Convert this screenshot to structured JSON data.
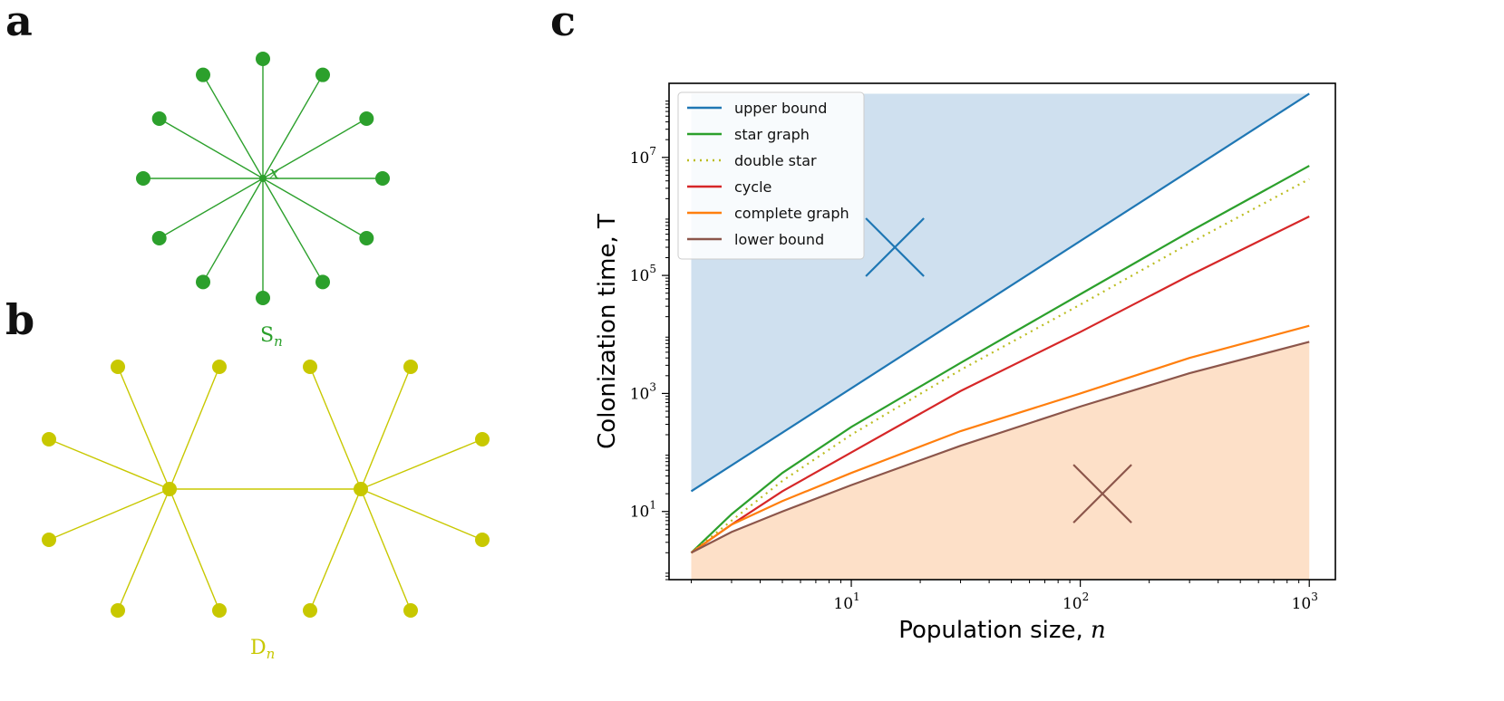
{
  "panels": {
    "a": "a",
    "b": "b",
    "c": "c"
  },
  "graph_a": {
    "label_main": "S",
    "label_sub": "n",
    "center_label": "x",
    "leaf_count": 12,
    "color": "#2ca02c"
  },
  "graph_b": {
    "label_main": "D",
    "label_sub": "n",
    "leaves_per_hub": 6,
    "color": "#c8c800"
  },
  "colors": {
    "upper": "#1f77b4",
    "star": "#2ca02c",
    "double": "#bcbd22",
    "cycle": "#d62728",
    "complete": "#ff7f0e",
    "lower": "#8c564b",
    "fill_upper": "#cfe0ef",
    "fill_lower": "#fde0c8"
  },
  "chart_data": {
    "type": "line",
    "xscale": "log",
    "yscale": "log",
    "xlim": [
      1.6,
      1300
    ],
    "ylim": [
      0.7,
      180000000.0
    ],
    "xlabel": "Population size, ",
    "xlabel_var": "n",
    "ylabel": "Colonization time, T",
    "xticks": [
      {
        "base": "10",
        "exp": "1",
        "value": 10
      },
      {
        "base": "10",
        "exp": "2",
        "value": 100
      },
      {
        "base": "10",
        "exp": "3",
        "value": 1000
      }
    ],
    "yticks": [
      {
        "base": "10",
        "exp": "1",
        "value": 10
      },
      {
        "base": "10",
        "exp": "3",
        "value": 1000
      },
      {
        "base": "10",
        "exp": "5",
        "value": 100000
      },
      {
        "base": "10",
        "exp": "7",
        "value": 10000000
      }
    ],
    "legend_position": "top-left",
    "series": [
      {
        "name": "upper bound",
        "key": "upper",
        "style": "solid",
        "x": [
          2,
          1000
        ],
        "y": [
          22,
          120000000.0
        ]
      },
      {
        "name": "star graph",
        "key": "star",
        "style": "solid",
        "x": [
          2,
          3,
          5,
          10,
          30,
          100,
          300,
          1000
        ],
        "y": [
          2,
          9,
          45,
          270,
          3300,
          48000,
          550000,
          7200000
        ]
      },
      {
        "name": "double star",
        "key": "double",
        "style": "dotted",
        "x": [
          2,
          3,
          5,
          10,
          30,
          100,
          300,
          1000
        ],
        "y": [
          2,
          7,
          33,
          200,
          2500,
          32000,
          350000,
          4300000
        ]
      },
      {
        "name": "cycle",
        "key": "cycle",
        "style": "solid",
        "x": [
          2,
          3,
          5,
          10,
          30,
          100,
          300,
          1000
        ],
        "y": [
          2,
          6,
          22,
          100,
          1100,
          11000,
          100000,
          1000000
        ]
      },
      {
        "name": "complete graph",
        "key": "complete",
        "style": "solid",
        "x": [
          2,
          3,
          5,
          10,
          30,
          100,
          300,
          1000
        ],
        "y": [
          2,
          6,
          15,
          45,
          230,
          1000,
          4000,
          14000
        ]
      },
      {
        "name": "lower bound",
        "key": "lower",
        "style": "solid",
        "x": [
          2,
          3,
          5,
          10,
          30,
          100,
          300,
          1000
        ],
        "y": [
          2,
          4.5,
          10,
          28,
          130,
          600,
          2200,
          7500
        ]
      }
    ],
    "markers": [
      {
        "key": "upper",
        "x": 15.5,
        "y": 300000
      },
      {
        "key": "lower",
        "x": 125,
        "y": 20
      }
    ]
  }
}
